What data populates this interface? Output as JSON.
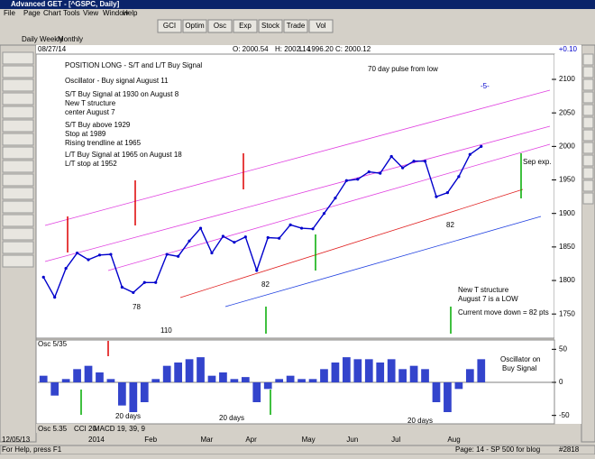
{
  "window": {
    "title": "Advanced GET - [^GSPC, Daily]",
    "menu": [
      "File",
      "Page",
      "Chart",
      "Tools",
      "View",
      "Window",
      "Help"
    ],
    "toolbar": [
      "GCI",
      "Optim",
      "Osc",
      "Exp",
      "Stock",
      "Trade",
      "Vol"
    ],
    "tabs": [
      "Daily",
      "Weekly",
      "Monthly"
    ],
    "header": {
      "date": "08/27/14",
      "open": "O: 2000.54",
      "high": "H: 2002.14",
      "low": "L: 1996.20",
      "close": "C: 2000.12",
      "change": "+0.10"
    },
    "panel_tabs": [
      "Osc 5.35",
      "CCI 20",
      "MACD 19, 39, 9"
    ],
    "status": {
      "help": "For Help, press F1",
      "page": "Page: 14 - SP 500 for blog",
      "count": "#2818"
    }
  },
  "chart_data": [
    {
      "type": "line",
      "color": "#0000cc",
      "values": [
        1805,
        1775,
        1818,
        1841,
        1831,
        1838,
        1839,
        1790,
        1782,
        1797,
        1797,
        1839,
        1836,
        1859,
        1878,
        1841,
        1866,
        1857,
        1865,
        1815,
        1864,
        1863,
        1883,
        1878,
        1877,
        1900,
        1923,
        1949,
        1951,
        1962,
        1960,
        1985,
        1968,
        1978,
        1978,
        1925,
        1931,
        1955,
        1988,
        2000
      ],
      "ylim": [
        1718,
        2135
      ],
      "yticks": [
        1750,
        1800,
        1850,
        1900,
        1950,
        2000,
        2050,
        2100
      ],
      "annotations": [
        "POSITION LONG - S/T and L/T Buy Signal",
        "Oscillator - Buy signal August 11",
        "S/T Buy Signal at 1930 on August 8",
        "New T structure",
        "center August 7",
        "S/T Buy above 1929",
        "Stop at 1989",
        "Rising trendline at 1965",
        "L/T Buy Signal at 1965 on August 18",
        "L/T stop at 1952",
        "70 day pulse from low",
        "-5-",
        "Sep exp.",
        "New T structure",
        "August 7 is a LOW",
        "Current move down = 82 pts",
        "82",
        "78",
        "110",
        "82"
      ]
    },
    {
      "type": "bar",
      "title": "Osc 5/35",
      "color": "#3344cc",
      "categories": [
        "12/05/13",
        null,
        null,
        null,
        "2014",
        null,
        null,
        null,
        null,
        "Feb",
        null,
        null,
        null,
        null,
        "Mar",
        null,
        null,
        null,
        "Apr",
        null,
        null,
        null,
        null,
        "May",
        null,
        null,
        null,
        "Jun",
        null,
        null,
        null,
        "Jul",
        null,
        null,
        null,
        null,
        "Aug",
        null,
        null,
        null
      ],
      "values": [
        10,
        -20,
        5,
        20,
        25,
        15,
        5,
        -35,
        -45,
        -30,
        5,
        25,
        30,
        35,
        38,
        10,
        15,
        5,
        8,
        -30,
        -10,
        5,
        10,
        5,
        5,
        20,
        30,
        38,
        35,
        35,
        30,
        35,
        20,
        25,
        20,
        -30,
        -45,
        -10,
        20,
        35
      ],
      "ylim": [
        -60,
        60
      ],
      "yticks": [
        -50,
        0,
        50
      ],
      "annotations": [
        "Oscillator on",
        "Buy Signal",
        "20 days",
        "20 days",
        "20 days"
      ]
    }
  ]
}
